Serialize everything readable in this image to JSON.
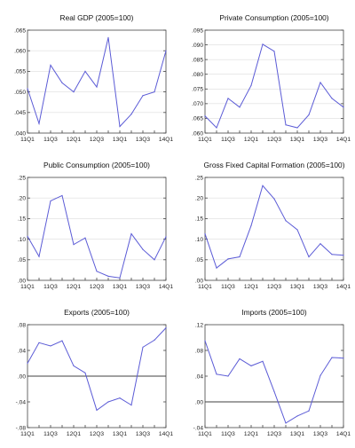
{
  "style": {
    "series_color": "#5b5bd6"
  },
  "chart_data": [
    {
      "type": "line",
      "title": "Real GDP (2005=100)",
      "x": [
        "11Q1",
        "11Q2",
        "11Q3",
        "11Q4",
        "12Q1",
        "12Q2",
        "12Q3",
        "12Q4",
        "13Q1",
        "13Q2",
        "13Q3",
        "13Q4",
        "14Q1"
      ],
      "xticks": [
        "11Q1",
        "11Q3",
        "12Q1",
        "12Q3",
        "13Q1",
        "13Q3",
        "14Q1"
      ],
      "values": [
        0.0508,
        0.0423,
        0.0565,
        0.0522,
        0.05,
        0.055,
        0.0512,
        0.0632,
        0.0416,
        0.0446,
        0.0491,
        0.05,
        0.06
      ],
      "ylim": [
        0.04,
        0.065
      ],
      "yticks": [
        0.04,
        0.045,
        0.05,
        0.055,
        0.06,
        0.065
      ],
      "yticklabels": [
        ".040",
        ".045",
        ".050",
        ".055",
        ".060",
        ".065"
      ],
      "grid": true
    },
    {
      "type": "line",
      "title": "Private Consumption (2005=100)",
      "x": [
        "11Q1",
        "11Q2",
        "11Q3",
        "11Q4",
        "12Q1",
        "12Q2",
        "12Q3",
        "12Q4",
        "13Q1",
        "13Q2",
        "13Q3",
        "13Q4",
        "14Q1"
      ],
      "xticks": [
        "11Q1",
        "11Q3",
        "12Q1",
        "12Q3",
        "13Q1",
        "13Q3",
        "14Q1"
      ],
      "values": [
        0.0658,
        0.0618,
        0.0718,
        0.0688,
        0.0762,
        0.0902,
        0.0878,
        0.0628,
        0.0618,
        0.0662,
        0.0772,
        0.0718,
        0.0688
      ],
      "ylim": [
        0.06,
        0.095
      ],
      "yticks": [
        0.06,
        0.065,
        0.07,
        0.075,
        0.08,
        0.085,
        0.09,
        0.095
      ],
      "yticklabels": [
        ".060",
        ".065",
        ".070",
        ".075",
        ".080",
        ".085",
        ".090",
        ".095"
      ],
      "grid": true
    },
    {
      "type": "line",
      "title": "Public Consumption (2005=100)",
      "x": [
        "11Q1",
        "11Q2",
        "11Q3",
        "11Q4",
        "12Q1",
        "12Q2",
        "12Q3",
        "12Q4",
        "13Q1",
        "13Q2",
        "13Q3",
        "13Q4",
        "14Q1"
      ],
      "xticks": [
        "11Q1",
        "11Q3",
        "12Q1",
        "12Q3",
        "13Q1",
        "13Q3",
        "14Q1"
      ],
      "values": [
        0.107,
        0.058,
        0.193,
        0.206,
        0.087,
        0.103,
        0.022,
        0.01,
        0.006,
        0.113,
        0.075,
        0.05,
        0.106
      ],
      "ylim": [
        0.0,
        0.25
      ],
      "yticks": [
        0.0,
        0.05,
        0.1,
        0.15,
        0.2,
        0.25
      ],
      "yticklabels": [
        ".00",
        ".05",
        ".10",
        ".15",
        ".20",
        ".25"
      ],
      "grid": true
    },
    {
      "type": "line",
      "title": "Gross Fixed Capital Formation (2005=100)",
      "x": [
        "11Q1",
        "11Q2",
        "11Q3",
        "11Q4",
        "12Q1",
        "12Q2",
        "12Q3",
        "12Q4",
        "13Q1",
        "13Q2",
        "13Q3",
        "13Q4",
        "14Q1"
      ],
      "xticks": [
        "11Q1",
        "11Q3",
        "12Q1",
        "12Q3",
        "13Q1",
        "13Q3",
        "14Q1"
      ],
      "values": [
        0.113,
        0.03,
        0.052,
        0.057,
        0.133,
        0.23,
        0.198,
        0.145,
        0.123,
        0.057,
        0.089,
        0.063,
        0.061
      ],
      "ylim": [
        0.0,
        0.25
      ],
      "yticks": [
        0.0,
        0.05,
        0.1,
        0.15,
        0.2,
        0.25
      ],
      "yticklabels": [
        ".00",
        ".05",
        ".10",
        ".15",
        ".20",
        ".25"
      ],
      "grid": true
    },
    {
      "type": "line",
      "title": "Exports (2005=100)",
      "x": [
        "11Q1",
        "11Q2",
        "11Q3",
        "11Q4",
        "12Q1",
        "12Q2",
        "12Q3",
        "12Q4",
        "13Q1",
        "13Q2",
        "13Q3",
        "13Q4",
        "14Q1"
      ],
      "xticks": [
        "11Q1",
        "11Q3",
        "12Q1",
        "12Q3",
        "13Q1",
        "13Q3",
        "14Q1"
      ],
      "values": [
        0.02,
        0.052,
        0.047,
        0.055,
        0.016,
        0.005,
        -0.053,
        -0.04,
        -0.034,
        -0.045,
        0.045,
        0.056,
        0.075
      ],
      "ylim": [
        -0.08,
        0.08
      ],
      "yticks": [
        -0.08,
        -0.04,
        0.0,
        0.04,
        0.08
      ],
      "yticklabels": [
        "-.08",
        "-.04",
        ".00",
        ".04",
        ".08"
      ],
      "zero_line": true,
      "grid": false
    },
    {
      "type": "line",
      "title": "Imports (2005=100)",
      "x": [
        "11Q1",
        "11Q2",
        "11Q3",
        "11Q4",
        "12Q1",
        "12Q2",
        "12Q3",
        "12Q4",
        "13Q1",
        "13Q2",
        "13Q3",
        "13Q4",
        "14Q1"
      ],
      "xticks": [
        "11Q1",
        "11Q3",
        "12Q1",
        "12Q3",
        "13Q1",
        "13Q3",
        "14Q1"
      ],
      "values": [
        0.095,
        0.043,
        0.04,
        0.067,
        0.056,
        0.063,
        0.016,
        -0.033,
        -0.022,
        -0.014,
        0.041,
        0.069,
        0.068
      ],
      "ylim": [
        -0.04,
        0.12
      ],
      "yticks": [
        -0.04,
        0.0,
        0.04,
        0.08,
        0.12
      ],
      "yticklabels": [
        "-.04",
        ".00",
        ".04",
        ".08",
        ".12"
      ],
      "zero_line": true,
      "grid": false
    }
  ]
}
